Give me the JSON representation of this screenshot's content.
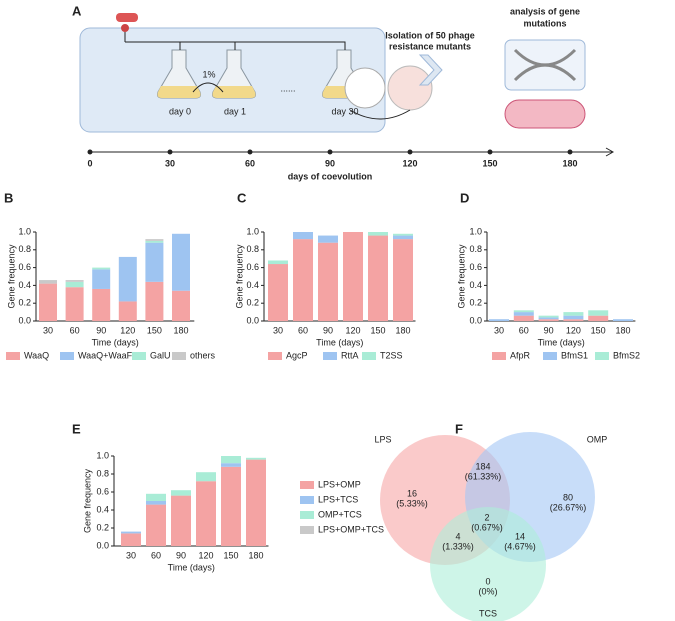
{
  "chart_data": [
    {
      "type": "timeline",
      "label": "A",
      "xticks": [
        0,
        30,
        60,
        90,
        120,
        150,
        180
      ],
      "xlim": [
        0,
        180
      ],
      "xlabel": "days of coevolution",
      "annotations": [
        "day 0",
        "day 1",
        "1%",
        "......",
        "day 30",
        "Isolation of 50 phage",
        "resistance mutants",
        "analysis of gene",
        "mutations"
      ]
    },
    {
      "type": "bar",
      "stacked": true,
      "label": "B",
      "categories": [
        "30",
        "60",
        "90",
        "120",
        "150",
        "180"
      ],
      "series": [
        {
          "name": "WaaQ",
          "color": "#f4a3a3",
          "values": [
            0.42,
            0.38,
            0.36,
            0.22,
            0.44,
            0.34
          ]
        },
        {
          "name": "WaaQ+WaaF",
          "color": "#9ec4f1",
          "values": [
            0,
            0,
            0.22,
            0.5,
            0.44,
            0.64
          ]
        },
        {
          "name": "GalU",
          "color": "#a9ecd6",
          "values": [
            0,
            0.06,
            0.02,
            0,
            0.02,
            0
          ]
        },
        {
          "name": "others",
          "color": "#c9c9c9",
          "values": [
            0.04,
            0.02,
            0,
            0,
            0.02,
            0
          ]
        }
      ],
      "ylim": [
        0,
        1
      ],
      "yticks": [
        {
          "value": 0,
          "label": "0.0"
        },
        0.2,
        0.4,
        0.6,
        0.8,
        {
          "value": 1,
          "label": "1.0"
        }
      ],
      "ylabel": "Gene frequency",
      "xlabel": "Time (days)"
    },
    {
      "type": "bar",
      "stacked": true,
      "label": "C",
      "categories": [
        "30",
        "60",
        "90",
        "120",
        "150",
        "180"
      ],
      "series": [
        {
          "name": "AgcP",
          "color": "#f4a3a3",
          "values": [
            0.64,
            0.92,
            0.88,
            1,
            0.96,
            0.92
          ]
        },
        {
          "name": "RttA",
          "color": "#9ec4f1",
          "values": [
            0,
            0.08,
            0.08,
            0,
            0,
            0.04
          ]
        },
        {
          "name": "T2SS",
          "color": "#a9ecd6",
          "values": [
            0.04,
            0,
            0,
            0,
            0.04,
            0.02
          ]
        }
      ],
      "ylim": [
        0,
        1
      ],
      "yticks": [
        {
          "value": 0,
          "label": "0.0"
        },
        0.2,
        0.4,
        0.6,
        0.8,
        {
          "value": 1,
          "label": "1.0"
        }
      ],
      "ylabel": "Gene frequency",
      "xlabel": "Time (days)"
    },
    {
      "type": "bar",
      "stacked": true,
      "label": "D",
      "categories": [
        "30",
        "60",
        "90",
        "120",
        "150",
        "180"
      ],
      "series": [
        {
          "name": "AfpR",
          "color": "#f4a3a3",
          "values": [
            0,
            0.06,
            0.02,
            0.02,
            0.06,
            0
          ]
        },
        {
          "name": "BfmS1",
          "color": "#9ec4f1",
          "values": [
            0.02,
            0.04,
            0.02,
            0.04,
            0,
            0.02
          ]
        },
        {
          "name": "BfmS2",
          "color": "#a9ecd6",
          "values": [
            0,
            0.02,
            0.02,
            0.04,
            0.06,
            0
          ]
        }
      ],
      "ylim": [
        0,
        1
      ],
      "yticks": [
        {
          "value": 0,
          "label": "0.0"
        },
        0.2,
        0.4,
        0.6,
        0.8,
        {
          "value": 1,
          "label": "1.0"
        }
      ],
      "ylabel": "Gene frequency",
      "xlabel": "Time (days)"
    },
    {
      "type": "bar",
      "stacked": true,
      "label": "E",
      "categories": [
        "30",
        "60",
        "90",
        "120",
        "150",
        "180"
      ],
      "series": [
        {
          "name": "LPS+OMP",
          "color": "#f4a3a3",
          "values": [
            0.14,
            0.46,
            0.56,
            0.72,
            0.88,
            0.96
          ]
        },
        {
          "name": "LPS+TCS",
          "color": "#9ec4f1",
          "values": [
            0.02,
            0.04,
            0,
            0,
            0.04,
            0
          ]
        },
        {
          "name": "OMP+TCS",
          "color": "#a9ecd6",
          "values": [
            0,
            0.08,
            0.06,
            0.1,
            0.08,
            0.02
          ]
        },
        {
          "name": "LPS+OMP+TCS",
          "color": "#c9c9c9",
          "values": [
            0,
            0,
            0,
            0,
            0,
            0
          ]
        }
      ],
      "ylim": [
        0,
        1
      ],
      "yticks": [
        {
          "value": 0,
          "label": "0.0"
        },
        0.2,
        0.4,
        0.6,
        0.8,
        {
          "value": 1,
          "label": "1.0"
        }
      ],
      "ylabel": "Gene frequency",
      "xlabel": "Time (days)"
    },
    {
      "type": "venn",
      "label": "F",
      "sets": [
        "LPS",
        "OMP",
        "TCS"
      ],
      "colors": [
        "#f6a6a6",
        "#a3c6f5",
        "#aeefd8"
      ],
      "counts": [
        16,
        184,
        80,
        4,
        2,
        14,
        0
      ],
      "value_labels": [
        "(5.33%)",
        "(61.33%)",
        "(26.67%)",
        "(1.33%)",
        "(0.67%)",
        "(4.67%)",
        "(0%)"
      ]
    }
  ]
}
